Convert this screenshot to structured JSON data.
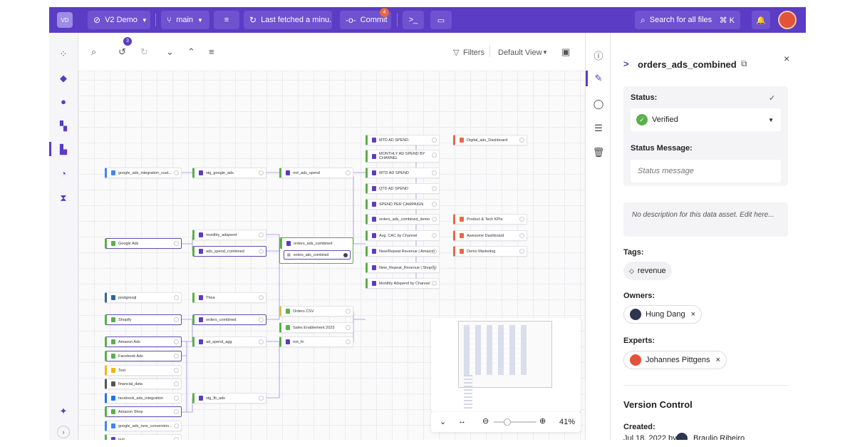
{
  "topbar": {
    "avatar": "VD",
    "workspace": "V2 Demo",
    "branch": "main",
    "fetch": "Last fetched a minu...",
    "commit": "Commit",
    "commit_count": "4",
    "search": "Search for all files",
    "shortcut": "⌘ K"
  },
  "canvas_toolbar": {
    "undo_count": "3",
    "filters": "Filters",
    "view": "Default View"
  },
  "nodes": {
    "g1": "google_ads_integration_cust...",
    "stg_google_ads": "stg_google_ads",
    "mrt_ads_spend": "mrt_ads_spend",
    "mtd": "MTD AD SPEND.",
    "monthly": "MONTHLY AD SPEND BY CHANNEL",
    "wtd": "WTD AD SPEND",
    "qtd": "QTD AD SPEND",
    "spend_campaign": "SPEND PER CAMPAIGN",
    "digital": "Digital_ads_Dashboard",
    "ads_combined_demo": "orders_ads_combined_demo",
    "product": "Product & Tech KPIs",
    "avg_cac": "Avg. CAC by Channel",
    "awesome": "Awesome Dashboard",
    "new_repeat_amazon": "New/Repeat Revenue | Amazon",
    "demo_marketing": "Demo Marketing",
    "new_repeat_shopify": "New_Repeat_Revenue | Shopify",
    "monthly_adspend_channel": "Monthly Adspend by Channel",
    "google_ads": "Google Ads",
    "monthly_adspend": "monthly_adspend",
    "ads_spend_combined": "ads_spend_combined",
    "orders_ads_combined": "orders_ads_combined",
    "orders_ads_combined_sub": "orders_ads_combined",
    "postgresql": "postgresql",
    "thea": "Thea",
    "orders_csv": "Orders CSV",
    "sales_enablement": "Sales Enablement 2023",
    "shopify": "Shopify",
    "orders_combined": "orders_combined",
    "mrt_fn": "mrt_fn",
    "amazon_ads": "Amazon Ads",
    "ad_spend_agg": "ad_spend_agg",
    "facebook_ads": "Facebook Ads",
    "test": "Test",
    "financial_data": "financial_data",
    "facebook_ads_integration": "facebook_ads_integration",
    "stg_fb_ads": "stg_fb_ads",
    "amazon_shop": "Amazon Shop",
    "google_ads_new": "google_ads_new_conversion...",
    "test2": "test"
  },
  "zoom": {
    "level": "41%"
  },
  "panel": {
    "title": "orders_ads_combined",
    "status_label": "Status:",
    "status_value": "Verified",
    "status_message_label": "Status Message:",
    "status_message_placeholder": "Status message",
    "description": "No description for this data asset. Edit here...",
    "tags_label": "Tags:",
    "tag": "revenue",
    "owners_label": "Owners:",
    "owner": "Hung Dang",
    "experts_label": "Experts:",
    "expert": "Johannes Pittgens",
    "version_control": "Version Control",
    "created_label": "Created:",
    "created_date": "Jul 18, 2022 by",
    "created_by": "Braulio Ribeiro"
  },
  "colors": {
    "brand": "#5b3cc4",
    "accent": "#5bb04a"
  }
}
